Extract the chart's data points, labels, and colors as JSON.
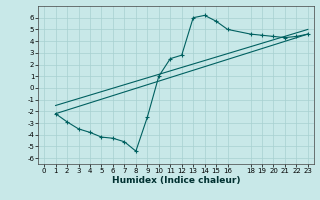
{
  "title": "",
  "xlabel": "Humidex (Indice chaleur)",
  "bg_color": "#c8e8e8",
  "line_color": "#006060",
  "grid_color": "#a8d0d0",
  "xlim": [
    -0.5,
    23.5
  ],
  "ylim": [
    -6.5,
    7.0
  ],
  "yticks": [
    -6,
    -5,
    -4,
    -3,
    -2,
    -1,
    0,
    1,
    2,
    3,
    4,
    5,
    6
  ],
  "xticks": [
    0,
    1,
    2,
    3,
    4,
    5,
    6,
    7,
    8,
    9,
    10,
    11,
    12,
    13,
    14,
    15,
    16,
    18,
    19,
    20,
    21,
    22,
    23
  ],
  "curve_x": [
    1,
    2,
    3,
    4,
    5,
    6,
    7,
    8,
    9,
    10,
    11,
    12,
    13,
    14,
    15,
    16,
    18,
    19,
    20,
    21,
    22,
    23
  ],
  "curve_y": [
    -2.2,
    -2.9,
    -3.5,
    -3.8,
    -4.2,
    -4.3,
    -4.6,
    -5.4,
    -2.5,
    1.0,
    2.5,
    2.8,
    6.0,
    6.2,
    5.7,
    5.0,
    4.6,
    4.5,
    4.4,
    4.3,
    4.4,
    4.6
  ],
  "line1_x": [
    1,
    23
  ],
  "line1_y": [
    -2.2,
    4.6
  ],
  "line2_x": [
    1,
    23
  ],
  "line2_y": [
    -1.5,
    5.0
  ],
  "tick_fontsize": 5.0,
  "xlabel_fontsize": 6.5
}
